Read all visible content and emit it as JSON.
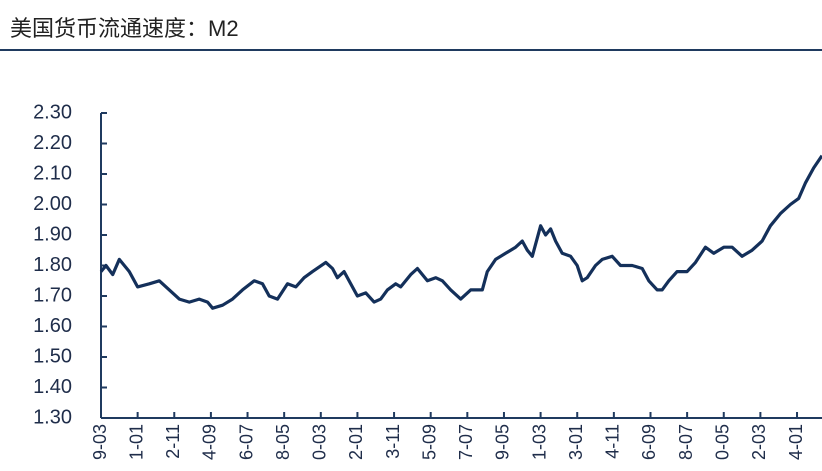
{
  "chart_data": {
    "type": "line",
    "title": "美国货币流通速度：M2",
    "x": [
      0,
      3,
      7,
      11,
      17,
      22,
      29,
      35,
      41,
      47,
      53,
      59,
      64,
      67,
      73,
      79,
      85,
      92,
      97,
      101,
      106,
      112,
      117,
      122,
      127,
      135,
      139,
      142,
      146,
      151,
      154,
      159,
      164,
      168,
      172,
      177,
      180,
      186,
      190,
      196,
      201,
      205,
      210,
      216,
      222,
      229,
      232,
      237,
      243,
      249,
      253,
      256,
      259,
      264,
      267,
      270,
      273,
      277,
      282,
      286,
      289,
      292,
      297,
      301,
      307,
      312,
      319,
      325,
      329,
      334,
      337,
      341,
      346,
      352,
      357,
      363,
      368,
      374,
      379,
      385,
      391,
      397,
      402,
      408,
      414,
      419,
      423,
      428,
      433
    ],
    "series": [
      {
        "name": "M2",
        "color": "#14305a",
        "values": [
          1.78,
          1.8,
          1.77,
          1.82,
          1.78,
          1.73,
          1.74,
          1.75,
          1.72,
          1.69,
          1.68,
          1.69,
          1.68,
          1.66,
          1.67,
          1.69,
          1.72,
          1.75,
          1.74,
          1.7,
          1.69,
          1.74,
          1.73,
          1.76,
          1.78,
          1.81,
          1.79,
          1.76,
          1.78,
          1.73,
          1.7,
          1.71,
          1.68,
          1.69,
          1.72,
          1.74,
          1.73,
          1.77,
          1.79,
          1.75,
          1.76,
          1.75,
          1.72,
          1.69,
          1.72,
          1.72,
          1.78,
          1.82,
          1.84,
          1.86,
          1.88,
          1.85,
          1.83,
          1.93,
          1.9,
          1.92,
          1.88,
          1.84,
          1.83,
          1.8,
          1.75,
          1.76,
          1.8,
          1.82,
          1.83,
          1.8,
          1.8,
          1.79,
          1.75,
          1.72,
          1.72,
          1.75,
          1.78,
          1.78,
          1.81,
          1.86,
          1.84,
          1.86,
          1.86,
          1.83,
          1.85,
          1.88,
          1.93,
          1.97,
          2.0,
          2.02,
          2.07,
          2.12,
          2.16
        ]
      }
    ],
    "xlim": [
      0,
      433
    ],
    "xticks": [
      {
        "value": 0,
        "label": "9-03"
      },
      {
        "value": 22,
        "label": "1-01"
      },
      {
        "value": 44,
        "label": "2-11"
      },
      {
        "value": 66,
        "label": "4-09"
      },
      {
        "value": 88,
        "label": "6-07"
      },
      {
        "value": 110,
        "label": "8-05"
      },
      {
        "value": 132,
        "label": "0-03"
      },
      {
        "value": 154,
        "label": "2-01"
      },
      {
        "value": 176,
        "label": "3-11"
      },
      {
        "value": 198,
        "label": "5-09"
      },
      {
        "value": 220,
        "label": "7-07"
      },
      {
        "value": 242,
        "label": "9-05"
      },
      {
        "value": 264,
        "label": "1-03"
      },
      {
        "value": 286,
        "label": "3-01"
      },
      {
        "value": 308,
        "label": "4-11"
      },
      {
        "value": 330,
        "label": "6-09"
      },
      {
        "value": 352,
        "label": "8-07"
      },
      {
        "value": 374,
        "label": "0-05"
      },
      {
        "value": 396,
        "label": "2-03"
      },
      {
        "value": 418,
        "label": "4-01"
      }
    ],
    "ylim": [
      1.3,
      2.3
    ],
    "yticks": [
      {
        "value": 1.3,
        "label": "1.30"
      },
      {
        "value": 1.4,
        "label": "1.40"
      },
      {
        "value": 1.5,
        "label": "1.50"
      },
      {
        "value": 1.6,
        "label": "1.60"
      },
      {
        "value": 1.7,
        "label": "1.70"
      },
      {
        "value": 1.8,
        "label": "1.80"
      },
      {
        "value": 1.9,
        "label": "1.90"
      },
      {
        "value": 2.0,
        "label": "2.00"
      },
      {
        "value": 2.1,
        "label": "2.10"
      },
      {
        "value": 2.2,
        "label": "2.20"
      },
      {
        "value": 2.3,
        "label": "2.30"
      }
    ],
    "grid": false
  }
}
